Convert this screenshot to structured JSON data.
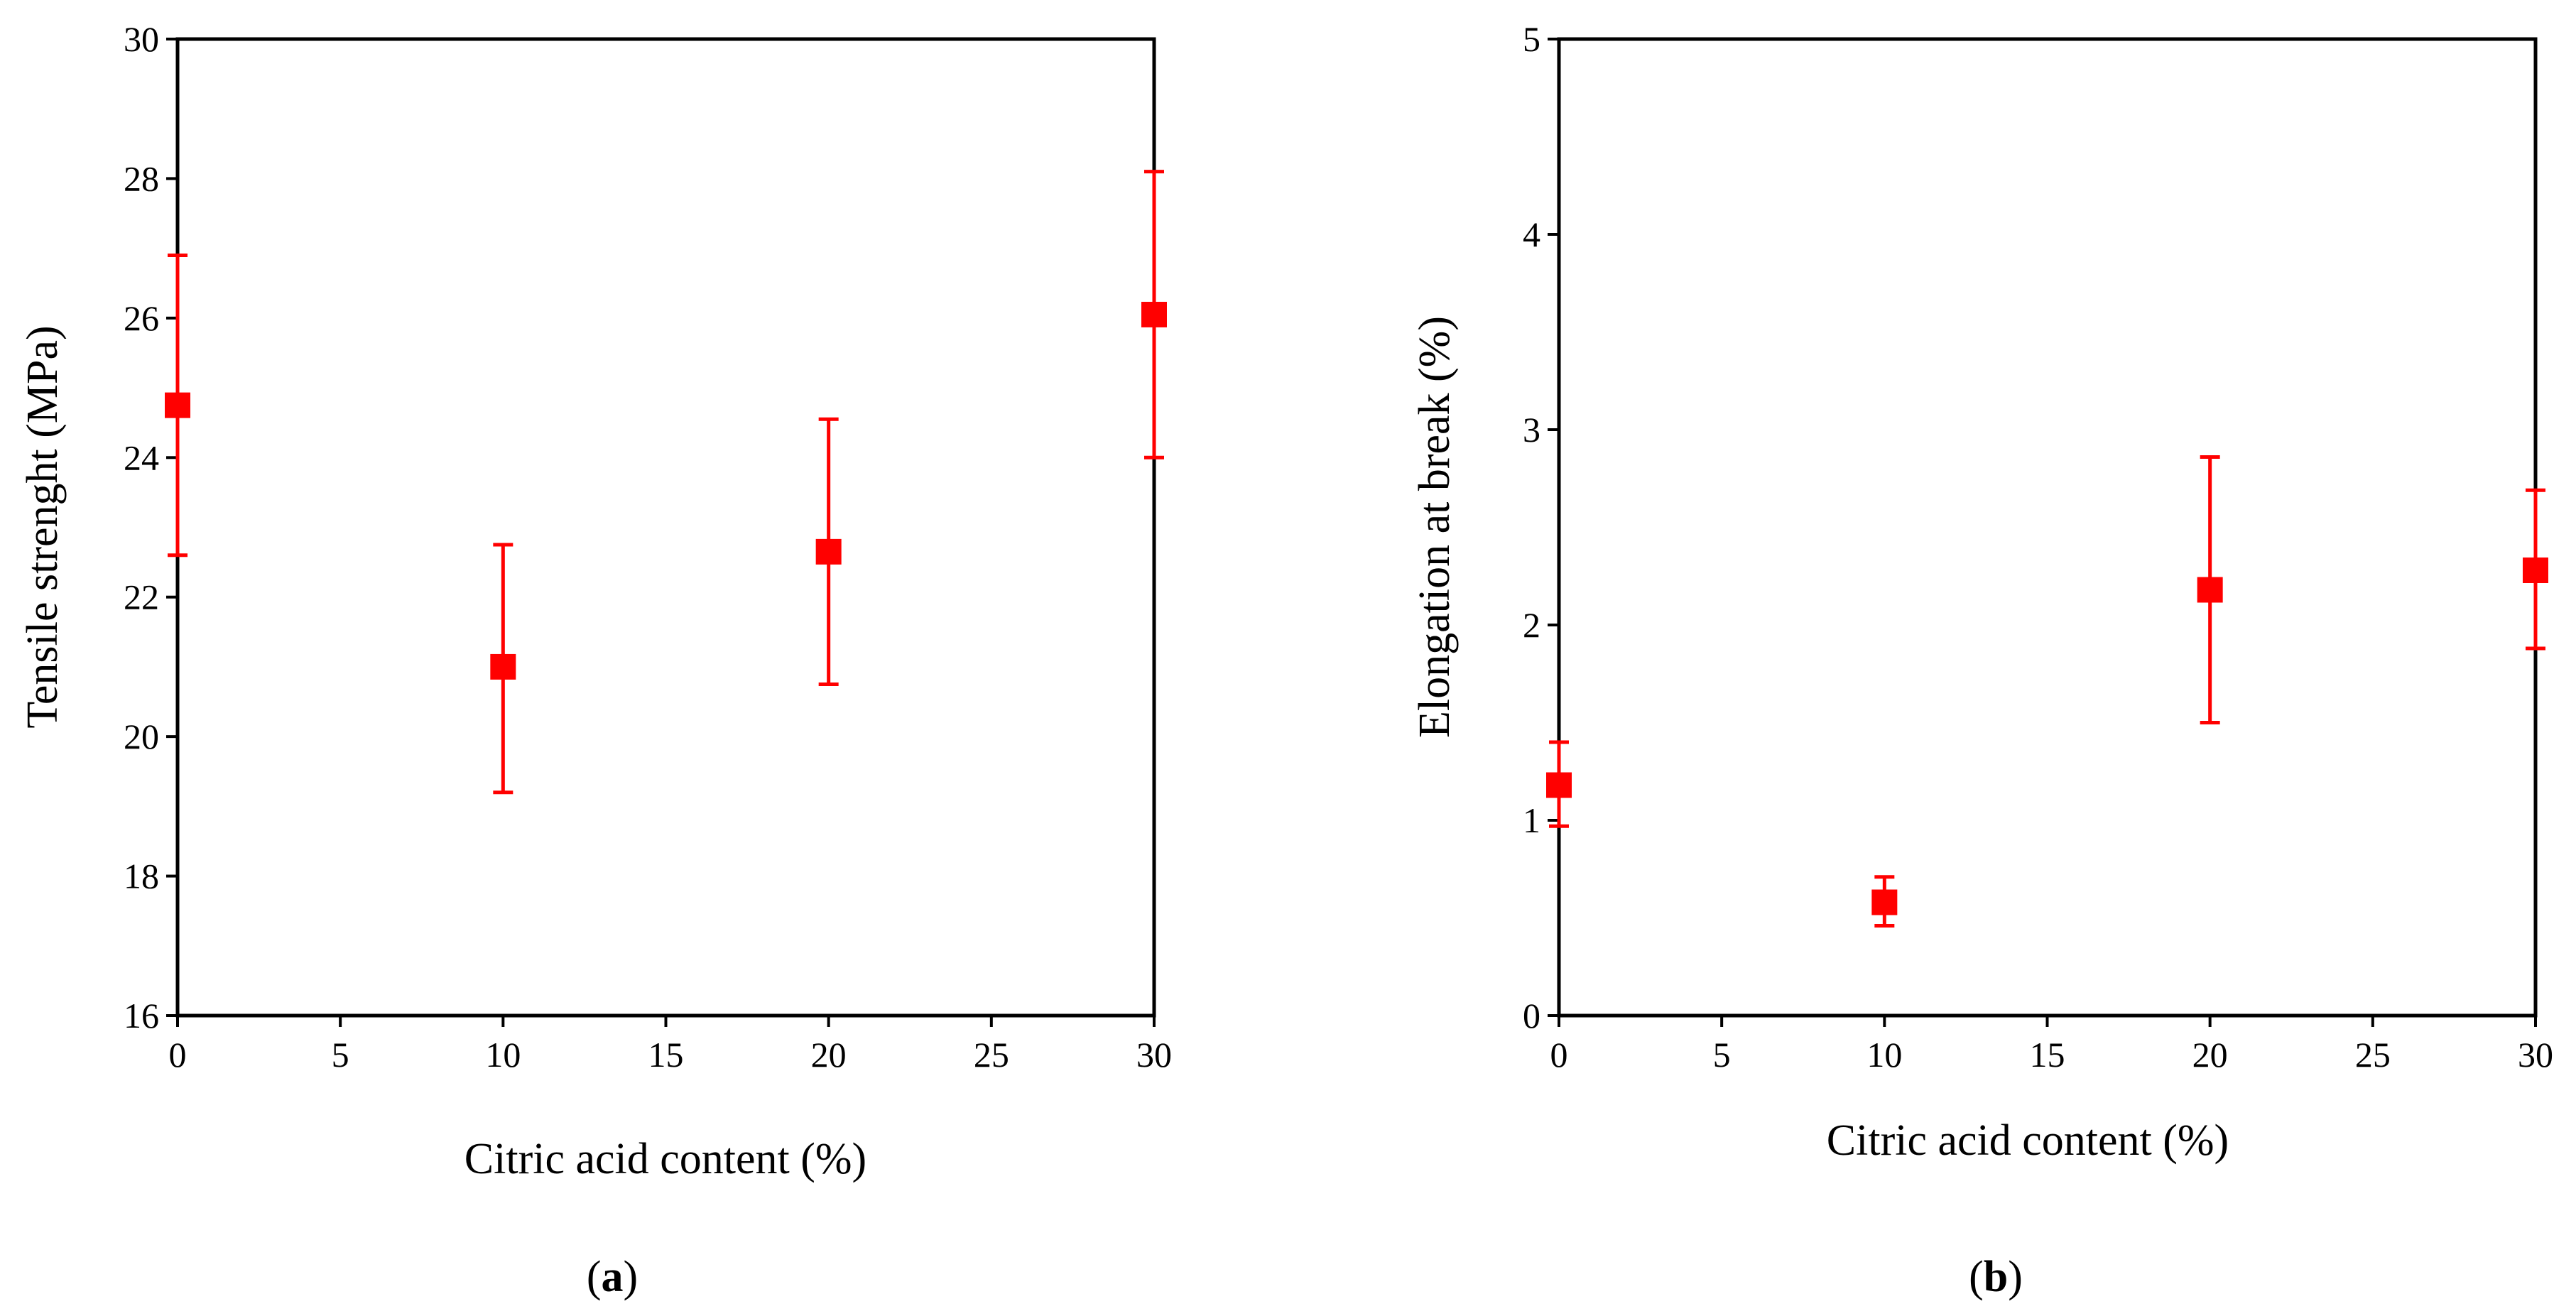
{
  "chart_data": [
    {
      "type": "scatter",
      "panel_label": "a",
      "xlabel": "Citric acid content (%)",
      "ylabel": "Tensile strenght (MPa)",
      "xlim": [
        0,
        30
      ],
      "ylim": [
        16,
        30
      ],
      "xticks": [
        0,
        5,
        10,
        15,
        20,
        25,
        30
      ],
      "yticks": [
        16,
        18,
        20,
        22,
        24,
        26,
        28,
        30
      ],
      "grid": false,
      "color": "#ff0000",
      "marker": "square",
      "points": [
        {
          "x": 0,
          "y": 24.75,
          "err_low": 22.6,
          "err_high": 26.9
        },
        {
          "x": 10,
          "y": 21.0,
          "err_low": 19.2,
          "err_high": 22.75
        },
        {
          "x": 20,
          "y": 22.65,
          "err_low": 20.75,
          "err_high": 24.55
        },
        {
          "x": 30,
          "y": 26.05,
          "err_low": 24.0,
          "err_high": 28.1
        }
      ]
    },
    {
      "type": "scatter",
      "panel_label": "b",
      "xlabel": "Citric acid content (%)",
      "ylabel": "Elongation at break (%)",
      "xlim": [
        0,
        30
      ],
      "ylim": [
        0,
        5
      ],
      "xticks": [
        0,
        5,
        10,
        15,
        20,
        25,
        30
      ],
      "yticks": [
        0,
        1,
        2,
        3,
        4,
        5
      ],
      "grid": false,
      "color": "#ff0000",
      "marker": "square",
      "points": [
        {
          "x": 0,
          "y": 1.18,
          "err_low": 0.97,
          "err_high": 1.4
        },
        {
          "x": 10,
          "y": 0.58,
          "err_low": 0.46,
          "err_high": 0.71
        },
        {
          "x": 20,
          "y": 2.18,
          "err_low": 1.5,
          "err_high": 2.86
        },
        {
          "x": 30,
          "y": 2.28,
          "err_low": 1.88,
          "err_high": 2.69
        }
      ]
    }
  ]
}
